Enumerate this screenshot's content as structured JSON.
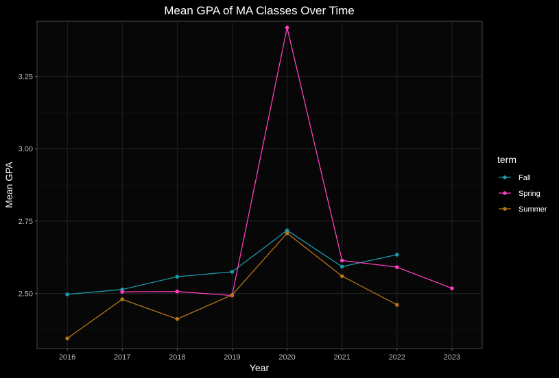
{
  "chart_data": {
    "type": "line",
    "title": "Mean GPA of MA Classes Over Time",
    "xlabel": "Year",
    "ylabel": "Mean GPA",
    "x_ticks": [
      2016,
      2017,
      2018,
      2019,
      2020,
      2021,
      2022,
      2023
    ],
    "y_ticks": [
      2.5,
      2.75,
      3.0,
      3.25
    ],
    "y_tick_labels": [
      "2.50",
      "2.75",
      "3.00",
      "3.25"
    ],
    "xlim": [
      2015.45,
      2023.55
    ],
    "ylim": [
      2.31,
      3.44
    ],
    "grid": true,
    "legend_title": "term",
    "legend_position": "right",
    "series": [
      {
        "name": "Fall",
        "color": "#1b9aaa",
        "points": [
          [
            2016,
            2.497
          ],
          [
            2017,
            2.514
          ],
          [
            2018,
            2.558
          ],
          [
            2019,
            2.575
          ],
          [
            2020,
            2.718
          ],
          [
            2021,
            2.593
          ],
          [
            2022,
            2.634
          ]
        ]
      },
      {
        "name": "Spring",
        "color": "#ff3fbf",
        "points": [
          [
            2017,
            2.506
          ],
          [
            2018,
            2.507
          ],
          [
            2019,
            2.493
          ],
          [
            2020,
            3.418
          ],
          [
            2021,
            2.614
          ],
          [
            2022,
            2.591
          ],
          [
            2023,
            2.518
          ]
        ]
      },
      {
        "name": "Summer",
        "color": "#b8741a",
        "points": [
          [
            2016,
            2.345
          ],
          [
            2017,
            2.48
          ],
          [
            2018,
            2.412
          ],
          [
            2019,
            2.495
          ],
          [
            2020,
            2.708
          ],
          [
            2021,
            2.56
          ],
          [
            2022,
            2.461
          ]
        ]
      }
    ]
  }
}
